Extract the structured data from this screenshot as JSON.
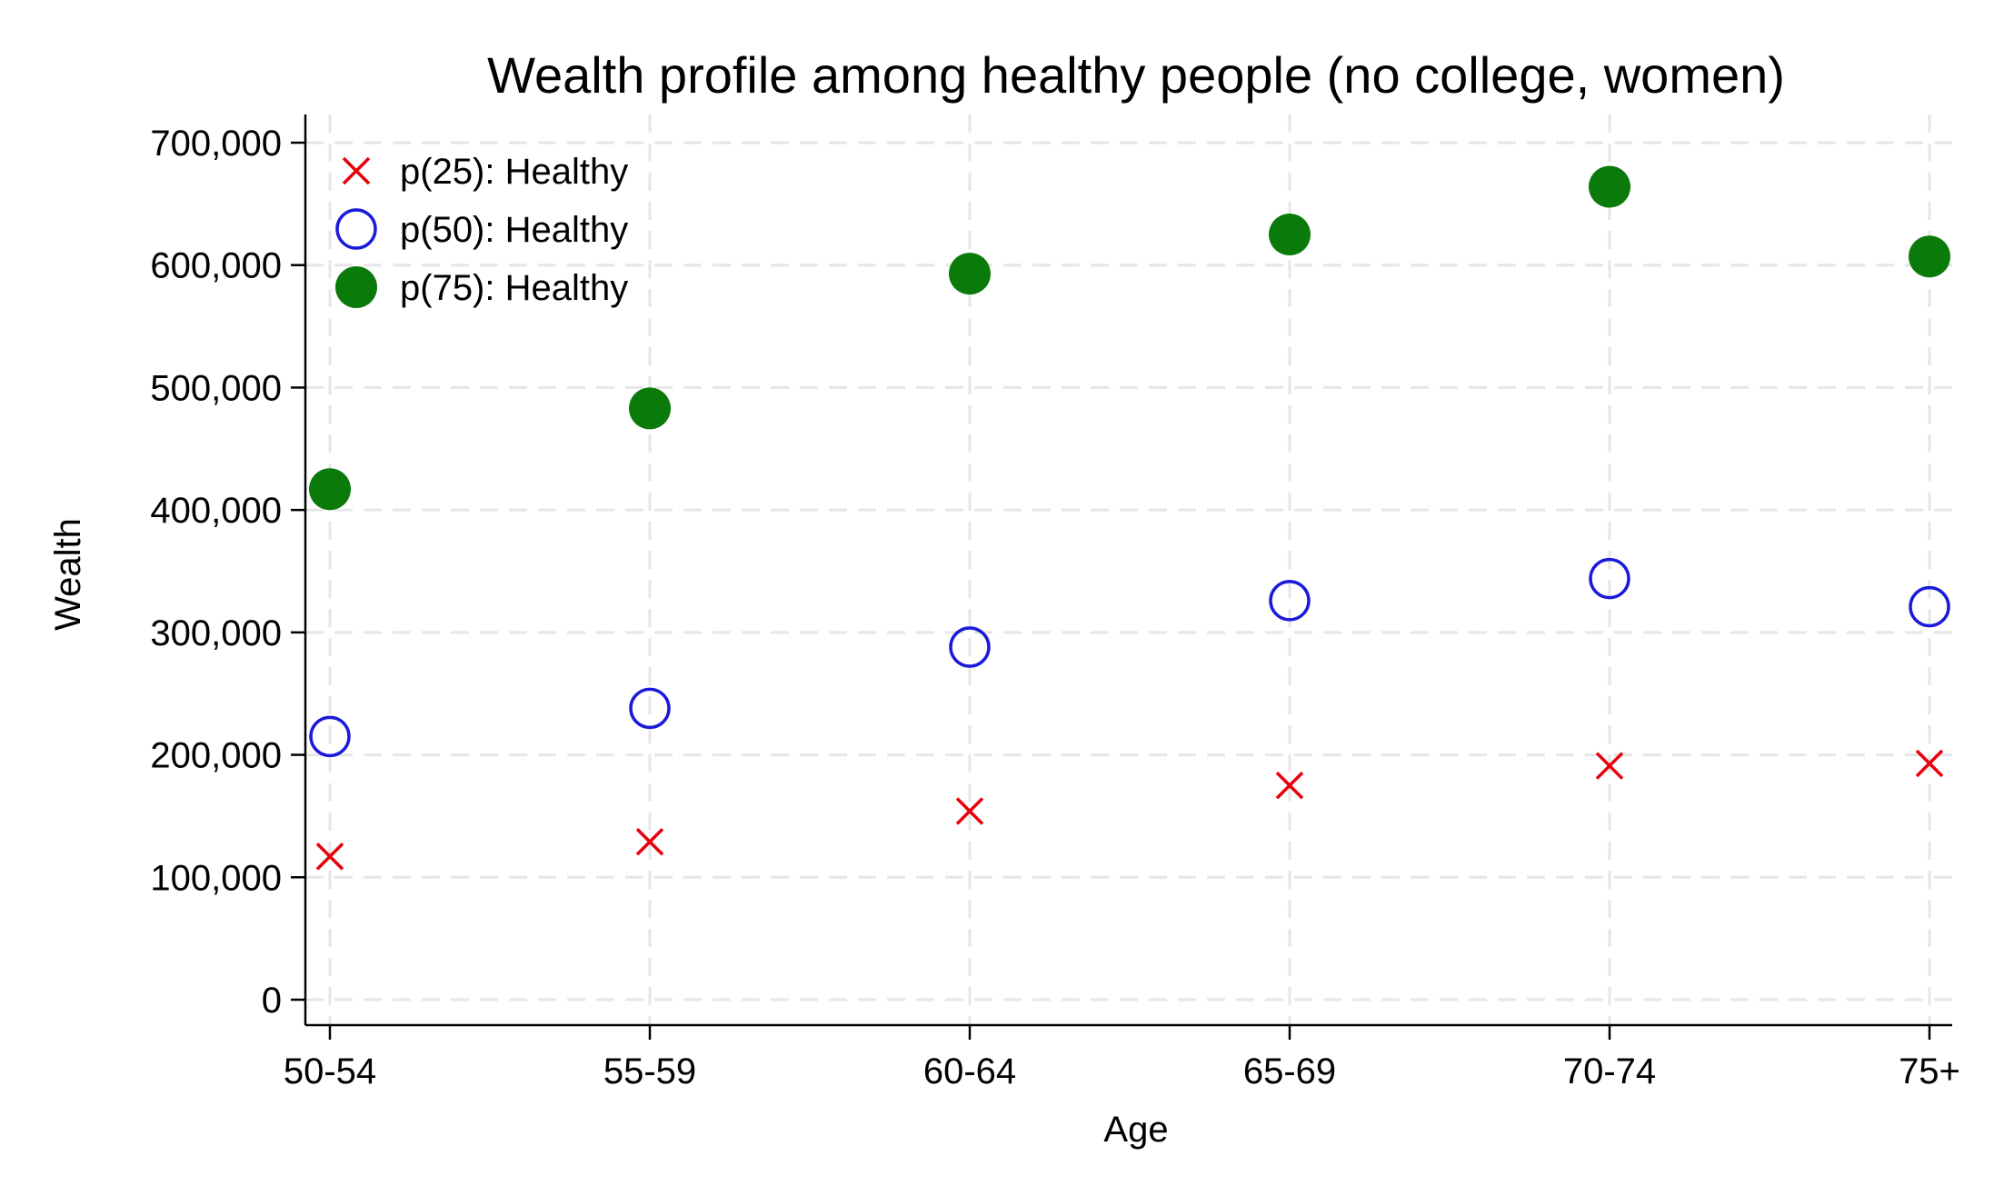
{
  "chart_data": {
    "type": "scatter",
    "title": "Wealth profile among healthy people (no college, women)",
    "xlabel": "Age",
    "ylabel": "Wealth",
    "categories": [
      "50-54",
      "55-59",
      "60-64",
      "65-69",
      "70-74",
      "75+"
    ],
    "yticks": [
      0,
      100000,
      200000,
      300000,
      400000,
      500000,
      600000,
      700000
    ],
    "ytick_labels": [
      "0",
      "100,000",
      "200,000",
      "300,000",
      "400,000",
      "500,000",
      "600,000",
      "700,000"
    ],
    "ylim": [
      -20000,
      720000
    ],
    "grid": true,
    "legend_position": "top-left",
    "series": [
      {
        "name": "p(25): Healthy",
        "marker": "x",
        "color": "#e8000b",
        "values": [
          117000,
          129000,
          154000,
          175000,
          191000,
          193000
        ]
      },
      {
        "name": "p(50): Healthy",
        "marker": "hollow-circle",
        "color": "#1a1adb",
        "values": [
          215000,
          238000,
          288000,
          326000,
          344000,
          321000
        ]
      },
      {
        "name": "p(75): Healthy",
        "marker": "filled-circle",
        "color": "#0a7a0a",
        "values": [
          417000,
          483000,
          593000,
          625000,
          664000,
          607000
        ]
      }
    ]
  }
}
